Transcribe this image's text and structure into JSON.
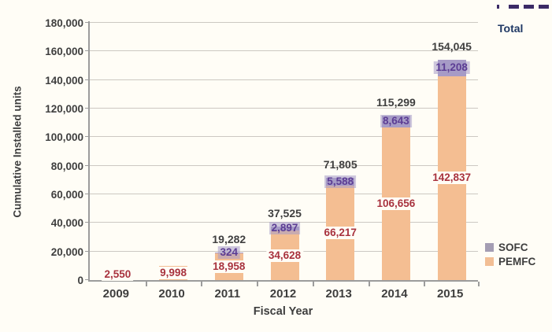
{
  "page": {
    "background": "#FFFDF6"
  },
  "chart_data": {
    "type": "bar",
    "stacked": true,
    "title": "",
    "xlabel": "Fiscal Year",
    "ylabel": "Cumulative Installed units",
    "ylim": [
      0,
      180000
    ],
    "ytick_step": 20000,
    "grid": "horizontal",
    "categories": [
      "2009",
      "2010",
      "2011",
      "2012",
      "2013",
      "2014",
      "2015"
    ],
    "series": [
      {
        "name": "PEMFC",
        "color": "#F4BE92",
        "label_color": "#A8323E",
        "values": [
          2550,
          9998,
          18958,
          34628,
          66217,
          106656,
          142837
        ]
      },
      {
        "name": "SOFC",
        "color": "#A79BC6",
        "label_color": "#5C3D94",
        "values": [
          null,
          null,
          324,
          2897,
          5588,
          8643,
          11208
        ]
      }
    ],
    "totals": {
      "name": "Total",
      "label_color": "#3F3F3F",
      "values": [
        null,
        null,
        19282,
        37525,
        71805,
        115299,
        154045
      ]
    },
    "legend": {
      "total_entry": {
        "label": "Total",
        "marker": "dashed-line",
        "marker_color": "#3B2A66",
        "text_color": "#1F3864",
        "position": "top-right"
      },
      "series_entries": [
        {
          "label": "SOFC",
          "swatch_color": "#A49DB3"
        },
        {
          "label": "PEMFC",
          "swatch_color": "#F2BE94"
        }
      ],
      "series_position": "right-bottom"
    },
    "axis": {
      "line_color": "#9C9C9C",
      "grid_color": "#CCC8C2",
      "tick_label_color": "#3E3E3E"
    }
  }
}
